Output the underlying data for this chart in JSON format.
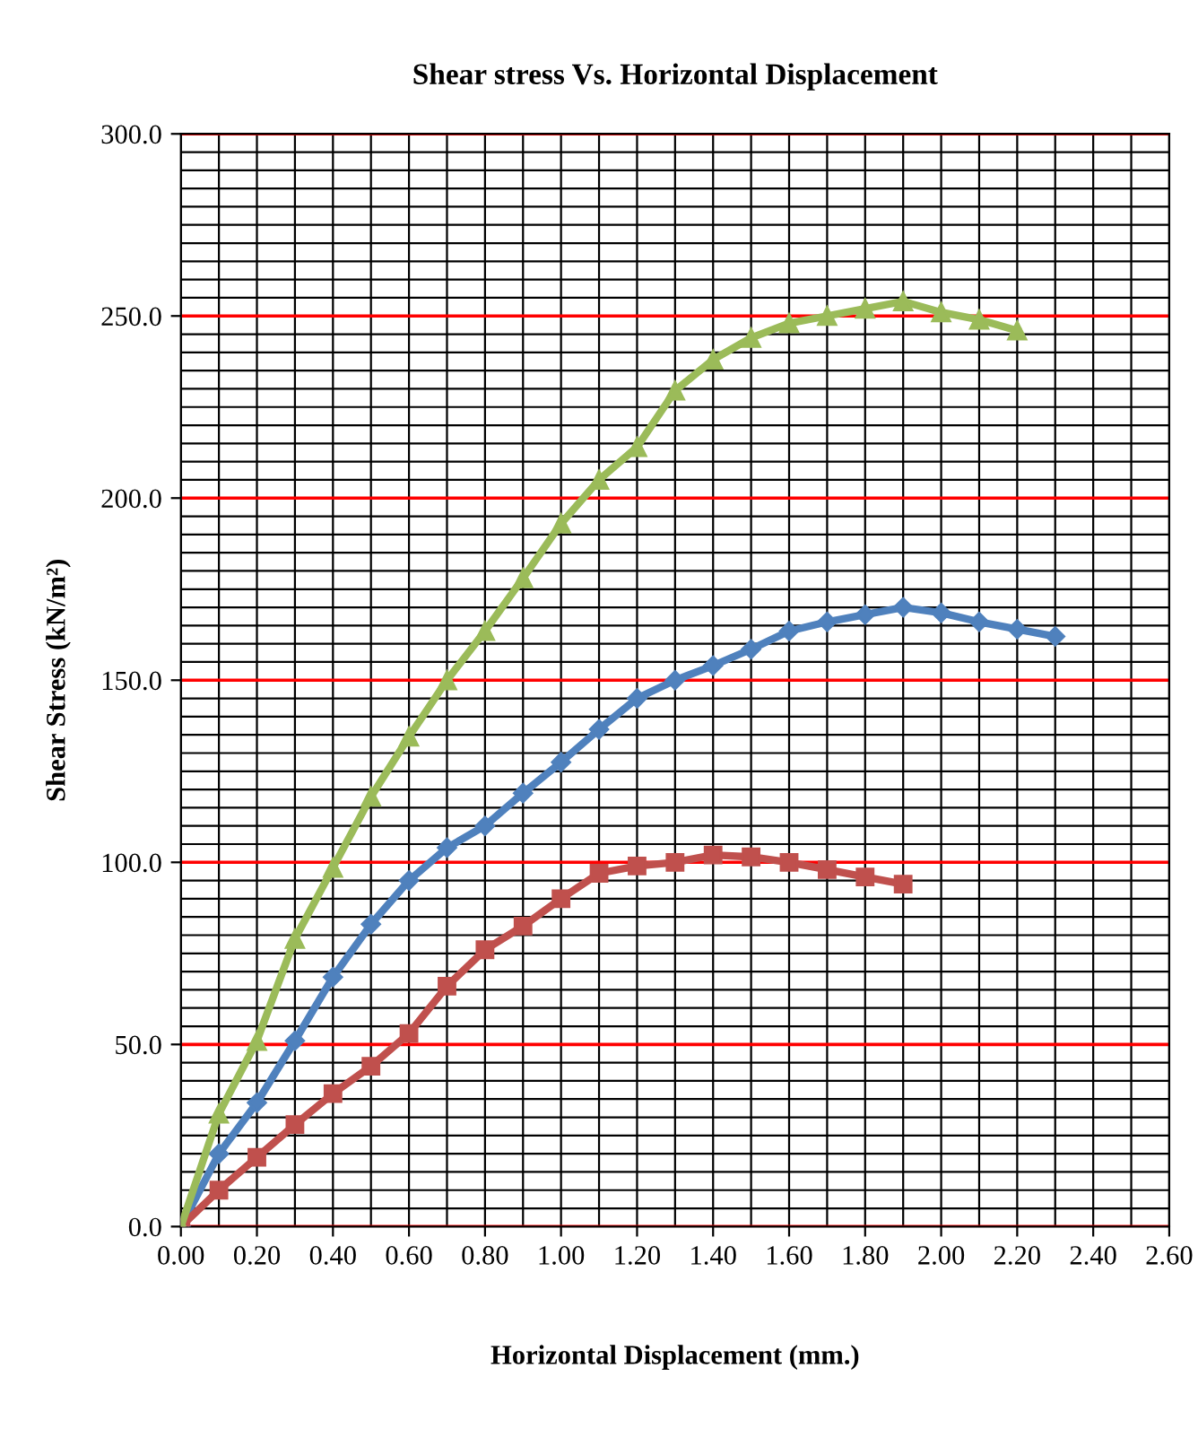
{
  "chart_data": {
    "type": "line",
    "title": "Shear stress Vs. Horizontal Displacement",
    "xlabel": "Horizontal Displacement (mm.)",
    "ylabel": "Shear Stress (kN/m²)",
    "x": [
      0,
      0.1,
      0.2,
      0.3,
      0.4,
      0.5,
      0.6,
      0.7,
      0.8,
      0.9,
      1.0,
      1.1,
      1.2,
      1.3,
      1.4,
      1.5,
      1.6,
      1.7,
      1.8,
      1.9,
      2.0,
      2.1,
      2.2,
      2.3
    ],
    "series": [
      {
        "color": "#4f81bd",
        "marker": "diamond",
        "values": [
          0,
          20,
          34,
          51,
          68.5,
          83,
          95,
          104,
          110,
          119,
          127.5,
          136.5,
          145,
          150,
          154,
          158.5,
          163.5,
          166,
          168,
          170,
          168.5,
          166,
          164,
          162
        ]
      },
      {
        "color": "#c0504d",
        "marker": "square",
        "values": [
          0,
          10,
          19,
          28,
          36.5,
          44,
          53,
          66,
          76,
          82.5,
          90,
          97,
          99,
          100,
          102,
          101.5,
          100,
          98,
          96,
          94,
          null,
          null,
          null,
          null
        ]
      },
      {
        "color": "#9bbb59",
        "marker": "triangle",
        "values": [
          0,
          31,
          51,
          79,
          98.5,
          118,
          134.5,
          150,
          163.5,
          178,
          193,
          205,
          214,
          229.5,
          238,
          244,
          248,
          250,
          252,
          254,
          251,
          249,
          246,
          null
        ]
      }
    ],
    "xlim": [
      0,
      2.6
    ],
    "xticks": [
      {
        "value": 0,
        "label": "0.00"
      },
      {
        "value": 0.1,
        "label": null
      },
      {
        "value": 0.2,
        "label": "0.20"
      },
      {
        "value": 0.3,
        "label": null
      },
      {
        "value": 0.4,
        "label": "0.40"
      },
      {
        "value": 0.5,
        "label": null
      },
      {
        "value": 0.6,
        "label": "0.60"
      },
      {
        "value": 0.7,
        "label": null
      },
      {
        "value": 0.8,
        "label": "0.80"
      },
      {
        "value": 0.9,
        "label": null
      },
      {
        "value": 1.0,
        "label": "1.00"
      },
      {
        "value": 1.1,
        "label": null
      },
      {
        "value": 1.2,
        "label": "1.20"
      },
      {
        "value": 1.3,
        "label": null
      },
      {
        "value": 1.4,
        "label": "1.40"
      },
      {
        "value": 1.5,
        "label": null
      },
      {
        "value": 1.6,
        "label": "1.60"
      },
      {
        "value": 1.7,
        "label": null
      },
      {
        "value": 1.8,
        "label": "1.80"
      },
      {
        "value": 1.9,
        "label": null
      },
      {
        "value": 2.0,
        "label": "2.00"
      },
      {
        "value": 2.1,
        "label": null
      },
      {
        "value": 2.2,
        "label": "2.20"
      },
      {
        "value": 2.3,
        "label": null
      },
      {
        "value": 2.4,
        "label": "2.40"
      },
      {
        "value": 2.5,
        "label": null
      },
      {
        "value": 2.6,
        "label": "2.60"
      }
    ],
    "ylim": [
      0,
      300
    ],
    "yticks": [
      {
        "value": 0,
        "label": "0.0"
      },
      {
        "value": 5,
        "label": null
      },
      {
        "value": 10,
        "label": null
      },
      {
        "value": 15,
        "label": null
      },
      {
        "value": 20,
        "label": null
      },
      {
        "value": 25,
        "label": null
      },
      {
        "value": 30,
        "label": null
      },
      {
        "value": 35,
        "label": null
      },
      {
        "value": 40,
        "label": null
      },
      {
        "value": 45,
        "label": null
      },
      {
        "value": 50,
        "label": "50.0"
      },
      {
        "value": 55,
        "label": null
      },
      {
        "value": 60,
        "label": null
      },
      {
        "value": 65,
        "label": null
      },
      {
        "value": 70,
        "label": null
      },
      {
        "value": 75,
        "label": null
      },
      {
        "value": 80,
        "label": null
      },
      {
        "value": 85,
        "label": null
      },
      {
        "value": 90,
        "label": null
      },
      {
        "value": 95,
        "label": null
      },
      {
        "value": 100,
        "label": "100.0"
      },
      {
        "value": 105,
        "label": null
      },
      {
        "value": 110,
        "label": null
      },
      {
        "value": 115,
        "label": null
      },
      {
        "value": 120,
        "label": null
      },
      {
        "value": 125,
        "label": null
      },
      {
        "value": 130,
        "label": null
      },
      {
        "value": 135,
        "label": null
      },
      {
        "value": 140,
        "label": null
      },
      {
        "value": 145,
        "label": null
      },
      {
        "value": 150,
        "label": "150.0"
      },
      {
        "value": 155,
        "label": null
      },
      {
        "value": 160,
        "label": null
      },
      {
        "value": 165,
        "label": null
      },
      {
        "value": 170,
        "label": null
      },
      {
        "value": 175,
        "label": null
      },
      {
        "value": 180,
        "label": null
      },
      {
        "value": 185,
        "label": null
      },
      {
        "value": 190,
        "label": null
      },
      {
        "value": 195,
        "label": null
      },
      {
        "value": 200,
        "label": "200.0"
      },
      {
        "value": 205,
        "label": null
      },
      {
        "value": 210,
        "label": null
      },
      {
        "value": 215,
        "label": null
      },
      {
        "value": 220,
        "label": null
      },
      {
        "value": 225,
        "label": null
      },
      {
        "value": 230,
        "label": null
      },
      {
        "value": 235,
        "label": null
      },
      {
        "value": 240,
        "label": null
      },
      {
        "value": 245,
        "label": null
      },
      {
        "value": 250,
        "label": "250.0"
      },
      {
        "value": 255,
        "label": null
      },
      {
        "value": 260,
        "label": null
      },
      {
        "value": 265,
        "label": null
      },
      {
        "value": 270,
        "label": null
      },
      {
        "value": 275,
        "label": null
      },
      {
        "value": 280,
        "label": null
      },
      {
        "value": 285,
        "label": null
      },
      {
        "value": 290,
        "label": null
      },
      {
        "value": 295,
        "label": null
      },
      {
        "value": 300,
        "label": "300.0"
      }
    ],
    "grid": true
  }
}
